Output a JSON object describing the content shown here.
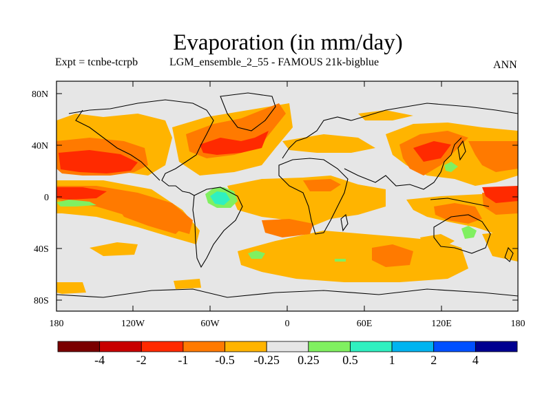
{
  "title": "Evaporation (in mm/day)",
  "subtitle_left": "Expt = tcnbe-tcrpb",
  "subtitle_center": "LGM_ensemble_2_55 - FAMOUS 21k-bigblue",
  "subtitle_right": "ANN",
  "lat_labels": [
    "80N",
    "40N",
    "0",
    "40S",
    "80S"
  ],
  "lon_labels": [
    "180",
    "120W",
    "60W",
    "0",
    "60E",
    "120E",
    "180"
  ],
  "colorbar": {
    "colors": [
      "#7a0000",
      "#c80000",
      "#ff2a00",
      "#ff7a00",
      "#ffb400",
      "#e6e6e6",
      "#80f060",
      "#30f0c0",
      "#00b4f0",
      "#0050ff",
      "#000090"
    ],
    "labels": [
      "-4",
      "-2",
      "-1",
      "-0.5",
      "-0.25",
      "0.25",
      "0.5",
      "1",
      "2",
      "4"
    ]
  },
  "colors": {
    "background": "#e6e6e6",
    "coast": "#000000"
  }
}
